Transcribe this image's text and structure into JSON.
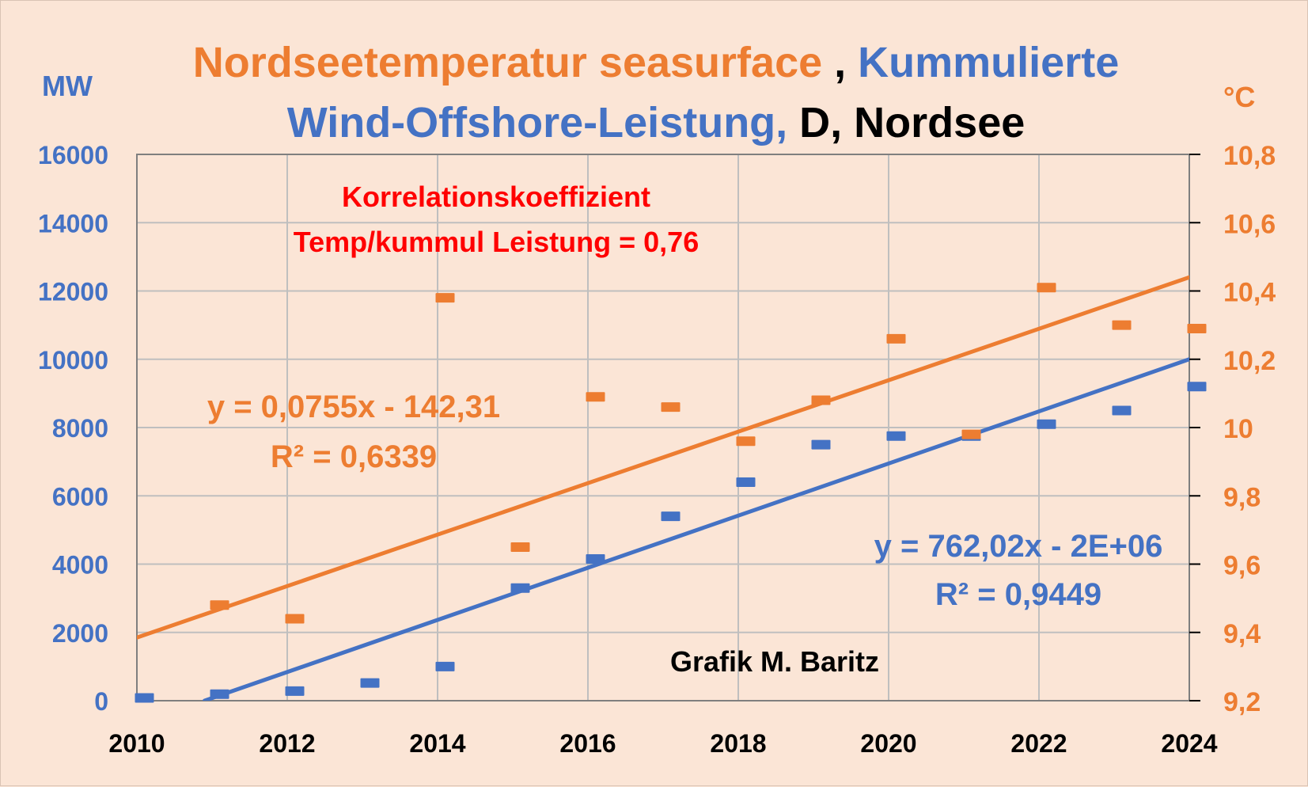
{
  "colors": {
    "background": "#fbe5d6",
    "blue": "#4472c4",
    "orange": "#ed7d31",
    "red": "#ff0000",
    "black": "#000000",
    "grid": "#bfbfbf"
  },
  "chart_data": {
    "type": "scatter",
    "title_parts": [
      {
        "text": "Nordseetemperatur seasurface",
        "color": "orange"
      },
      {
        "text": " , ",
        "color": "black"
      },
      {
        "text": "Kummulierte",
        "color": "blue"
      },
      {
        "text": "Wind-Offshore-Leistung,",
        "color": "blue"
      },
      {
        "text": " D, Nordsee",
        "color": "black"
      }
    ],
    "y_left_label": "MW",
    "y_right_label": "°C",
    "xlim": [
      2010,
      2024
    ],
    "ylim_left": [
      0,
      16000
    ],
    "ylim_right": [
      9.2,
      10.8
    ],
    "x_ticks": [
      "2010",
      "2012",
      "2014",
      "2016",
      "2018",
      "2020",
      "2022",
      "2024"
    ],
    "y_left_ticks": [
      "0",
      "2000",
      "4000",
      "6000",
      "8000",
      "10000",
      "12000",
      "14000",
      "16000"
    ],
    "y_right_ticks": [
      "9,2",
      "9,4",
      "9,6",
      "9,8",
      "10",
      "10,2",
      "10,4",
      "10,6",
      "10,8"
    ],
    "grid": true,
    "series": [
      {
        "axis": "left",
        "color": "blue",
        "points": [
          {
            "x": 2010.1,
            "y": 80
          },
          {
            "x": 2011.1,
            "y": 190
          },
          {
            "x": 2012.1,
            "y": 280
          },
          {
            "x": 2013.1,
            "y": 520
          },
          {
            "x": 2014.1,
            "y": 1000
          },
          {
            "x": 2015.1,
            "y": 3300
          },
          {
            "x": 2016.1,
            "y": 4150
          },
          {
            "x": 2017.1,
            "y": 5400
          },
          {
            "x": 2018.1,
            "y": 6400
          },
          {
            "x": 2019.1,
            "y": 7500
          },
          {
            "x": 2020.1,
            "y": 7750
          },
          {
            "x": 2021.1,
            "y": 7750
          },
          {
            "x": 2022.1,
            "y": 8100
          },
          {
            "x": 2023.1,
            "y": 8500
          },
          {
            "x": 2024.1,
            "y": 9200
          }
        ],
        "trendline": {
          "x": [
            2010.9,
            2024.0
          ],
          "y": [
            0,
            10000
          ]
        }
      },
      {
        "axis": "right",
        "color": "orange",
        "points": [
          {
            "x": 2011.1,
            "y": 9.48
          },
          {
            "x": 2012.1,
            "y": 9.44
          },
          {
            "x": 2014.1,
            "y": 10.38
          },
          {
            "x": 2015.1,
            "y": 9.65
          },
          {
            "x": 2016.1,
            "y": 10.09
          },
          {
            "x": 2017.1,
            "y": 10.06
          },
          {
            "x": 2018.1,
            "y": 9.96
          },
          {
            "x": 2019.1,
            "y": 10.08
          },
          {
            "x": 2020.1,
            "y": 10.26
          },
          {
            "x": 2021.1,
            "y": 9.98
          },
          {
            "x": 2022.1,
            "y": 10.41
          },
          {
            "x": 2023.1,
            "y": 10.3
          },
          {
            "x": 2024.1,
            "y": 10.29
          }
        ],
        "trendline": {
          "x": [
            2010.0,
            2024.0
          ],
          "y": [
            9.385,
            10.44
          ]
        }
      }
    ],
    "annotations": {
      "correlation_line1": "Korrelationskoeffizient",
      "correlation_line2": "Temp/kummul Leistung = 0,76",
      "orange_eq": "y = 0,0755x - 142,31",
      "orange_r2": "R² = 0,6339",
      "blue_eq": "y = 762,02x - 2E+06",
      "blue_r2": "R² = 0,9449",
      "credit": "Grafik M. Baritz"
    }
  }
}
